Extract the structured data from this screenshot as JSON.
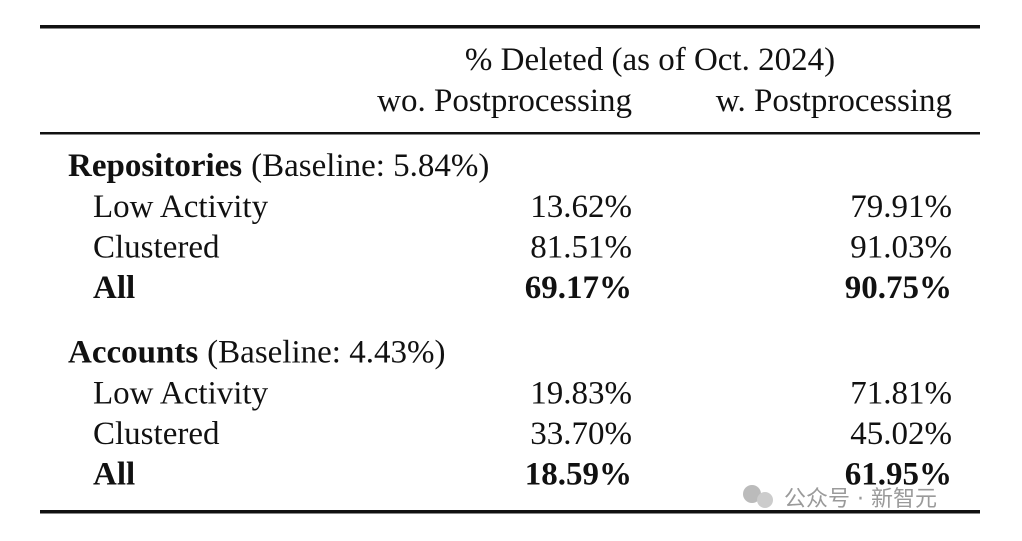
{
  "table": {
    "header": {
      "group": "% Deleted (as of Oct. 2024)",
      "columns": [
        "wo. Postprocessing",
        "w. Postprocessing"
      ]
    },
    "sections": [
      {
        "name": "Repositories",
        "note": "(Baseline: 5.84%)",
        "rows": [
          {
            "label": "Low Activity",
            "values": [
              "13.62%",
              "79.91%"
            ],
            "bold": false
          },
          {
            "label": "Clustered",
            "values": [
              "81.51%",
              "91.03%"
            ],
            "bold": false
          },
          {
            "label": "All",
            "values": [
              "69.17%",
              "90.75%"
            ],
            "bold": true
          }
        ]
      },
      {
        "name": "Accounts",
        "note": "(Baseline: 4.43%)",
        "rows": [
          {
            "label": "Low Activity",
            "values": [
              "19.83%",
              "71.81%"
            ],
            "bold": false
          },
          {
            "label": "Clustered",
            "values": [
              "33.70%",
              "45.02%"
            ],
            "bold": false
          },
          {
            "label": "All",
            "values": [
              "18.59%",
              "61.95%"
            ],
            "bold": true
          }
        ]
      }
    ]
  },
  "watermark": "公众号 · 新智元"
}
